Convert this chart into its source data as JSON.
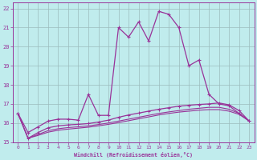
{
  "background_color": "#c0eced",
  "grid_color": "#9bbcbd",
  "line_color": "#993399",
  "xlim": [
    -0.5,
    23.5
  ],
  "ylim": [
    15.0,
    22.3
  ],
  "yticks": [
    15,
    16,
    17,
    18,
    19,
    20,
    21,
    22
  ],
  "xticks": [
    0,
    1,
    2,
    3,
    4,
    5,
    6,
    7,
    8,
    9,
    10,
    11,
    12,
    13,
    14,
    15,
    16,
    17,
    18,
    19,
    20,
    21,
    22,
    23
  ],
  "xlabel": "Windchill (Refroidissement éolien,°C)",
  "curve1_x": [
    0,
    1,
    2,
    3,
    4,
    5,
    6,
    7,
    8,
    9,
    10,
    11,
    12,
    13,
    14,
    15,
    16,
    17,
    18,
    19,
    20,
    21,
    22,
    23
  ],
  "curve1_y": [
    16.5,
    15.5,
    15.8,
    16.1,
    16.2,
    16.2,
    16.15,
    17.5,
    16.4,
    16.4,
    21.0,
    20.5,
    21.3,
    20.3,
    21.85,
    21.7,
    21.0,
    19.0,
    19.3,
    17.5,
    17.0,
    16.9,
    16.5,
    16.1
  ],
  "curve2_x": [
    0,
    1,
    2,
    3,
    4,
    5,
    6,
    7,
    8,
    9,
    10,
    11,
    12,
    13,
    14,
    15,
    16,
    17,
    18,
    19,
    20,
    21,
    22,
    23
  ],
  "curve2_y": [
    16.5,
    15.2,
    15.5,
    15.75,
    15.85,
    15.9,
    15.93,
    15.97,
    16.05,
    16.15,
    16.3,
    16.42,
    16.52,
    16.62,
    16.72,
    16.8,
    16.88,
    16.93,
    16.97,
    17.0,
    17.05,
    16.95,
    16.65,
    16.1
  ],
  "curve3_x": [
    0,
    1,
    2,
    3,
    4,
    5,
    6,
    7,
    8,
    9,
    10,
    11,
    12,
    13,
    14,
    15,
    16,
    17,
    18,
    19,
    20,
    21,
    22,
    23
  ],
  "curve3_y": [
    16.5,
    15.2,
    15.4,
    15.6,
    15.7,
    15.76,
    15.8,
    15.85,
    15.92,
    16.0,
    16.1,
    16.2,
    16.3,
    16.4,
    16.5,
    16.58,
    16.65,
    16.72,
    16.77,
    16.82,
    16.82,
    16.72,
    16.5,
    16.1
  ],
  "curve4_x": [
    0,
    1,
    2,
    3,
    4,
    5,
    6,
    7,
    8,
    9,
    10,
    11,
    12,
    13,
    14,
    15,
    16,
    17,
    18,
    19,
    20,
    21,
    22,
    23
  ],
  "curve4_y": [
    16.5,
    15.2,
    15.35,
    15.52,
    15.62,
    15.68,
    15.73,
    15.78,
    15.85,
    15.93,
    16.02,
    16.12,
    16.22,
    16.32,
    16.42,
    16.5,
    16.57,
    16.62,
    16.67,
    16.7,
    16.7,
    16.62,
    16.45,
    16.1
  ]
}
